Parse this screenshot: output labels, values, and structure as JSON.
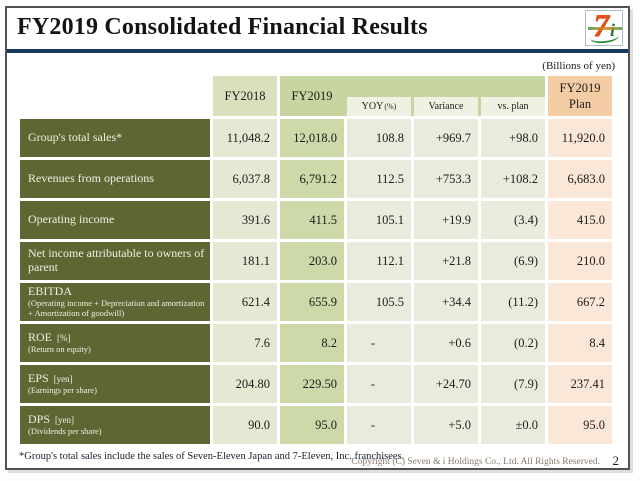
{
  "slide": {
    "title": "FY2019 Consolidated Financial Results",
    "unit_note": "(Billions of yen)",
    "footnote": "*Group's total sales include the sales of Seven-Eleven Japan and 7-Eleven, Inc. franchisees.",
    "copyright": "Copyright (C)  Seven & i Holdings Co., Ltd.  All Rights Reserved.",
    "page_number": "2",
    "logo": {
      "seven": "7",
      "i": "i"
    }
  },
  "table": {
    "header": {
      "fy2018": "FY2018",
      "fy2019": "FY2019",
      "yoy": "YOY",
      "yoy_pct": "(%)",
      "variance": "Variance",
      "vs_plan": "vs. plan",
      "plan_line1": "FY2019",
      "plan_line2": "Plan"
    },
    "rows": [
      {
        "label": "Group's total sales*",
        "suffix": "",
        "sub": "",
        "values": [
          "11,048.2",
          "12,018.0",
          "108.8",
          "+969.7",
          "+98.0",
          "11,920.0"
        ]
      },
      {
        "label": "Revenues from operations",
        "suffix": "",
        "sub": "",
        "values": [
          "6,037.8",
          "6,791.2",
          "112.5",
          "+753.3",
          "+108.2",
          "6,683.0"
        ]
      },
      {
        "label": "Operating income",
        "suffix": "",
        "sub": "",
        "values": [
          "391.6",
          "411.5",
          "105.1",
          "+19.9",
          "(3.4)",
          "415.0"
        ]
      },
      {
        "label": "Net income attributable to owners of parent",
        "suffix": "",
        "sub": "",
        "values": [
          "181.1",
          "203.0",
          "112.1",
          "+21.8",
          "(6.9)",
          "210.0"
        ]
      },
      {
        "label": "EBITDA",
        "suffix": "",
        "sub": "(Operating income + Depreciation and amortization + Amortization of goodwill)",
        "values": [
          "621.4",
          "655.9",
          "105.5",
          "+34.4",
          "(11.2)",
          "667.2"
        ]
      },
      {
        "label": "ROE",
        "suffix": "[%]",
        "sub": "(Return on equity)",
        "values": [
          "7.6",
          "8.2",
          "-",
          "+0.6",
          "(0.2)",
          "8.4"
        ]
      },
      {
        "label": "EPS",
        "suffix": "[yen]",
        "sub": "(Earnings per share)",
        "values": [
          "204.80",
          "229.50",
          "-",
          "+24.70",
          "(7.9)",
          "237.41"
        ]
      },
      {
        "label": "DPS",
        "suffix": "[yen]",
        "sub": "(Dividends per share)",
        "values": [
          "90.0",
          "95.0",
          "-",
          "+5.0",
          "±0.0",
          "95.0"
        ]
      }
    ]
  },
  "colors": {
    "accent_navy": "#17375d",
    "label_cell": "#5c6733",
    "fy2018_header": "#d9e1bc",
    "fy2019_band": "#c7d5a1",
    "subheader_cell": "#eff1e3",
    "plan_header": "#f3cca4",
    "fy2018_data": "#e5e9d3",
    "fy2019_data": "#ced9a9",
    "sub_data": "#e9ecdd",
    "plan_data": "#fae7d7"
  }
}
